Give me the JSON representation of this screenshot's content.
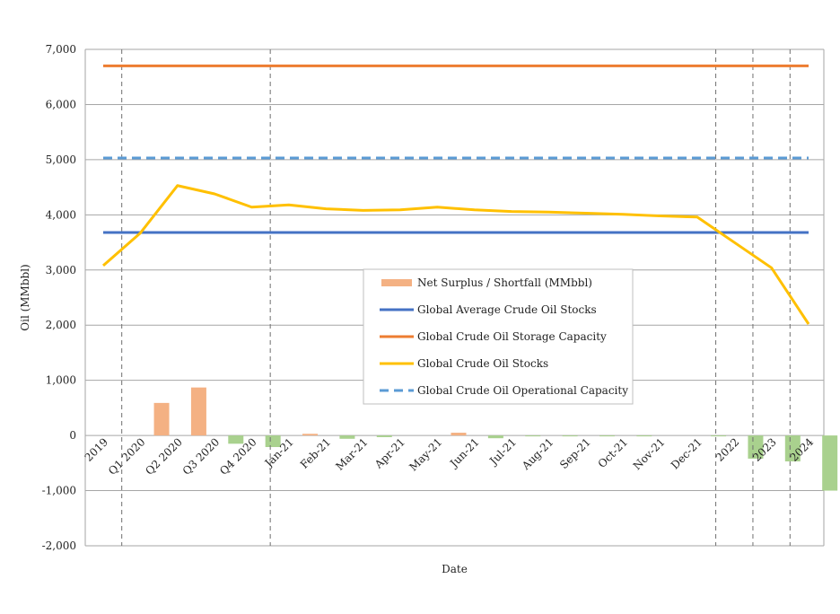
{
  "chart_data": {
    "type": "line",
    "title": "",
    "xlabel": "Date",
    "ylabel": "Oil (MMbbl)",
    "ylim": [
      -2000,
      7000
    ],
    "yticks": [
      -2000,
      -1000,
      0,
      1000,
      2000,
      3000,
      4000,
      5000,
      6000,
      7000
    ],
    "ytick_labels": [
      "-2,000",
      "-1,000",
      "0",
      "1,000",
      "2,000",
      "3,000",
      "4,000",
      "5,000",
      "6,000",
      "7,000"
    ],
    "categories": [
      "2019",
      "Q1 2020",
      "Q2 2020",
      "Q3 2020",
      "Q4 2020",
      "Jan-21",
      "Feb-21",
      "Mar-21",
      "Apr-21",
      "May-21",
      "Jun-21",
      "Jul-21",
      "Aug-21",
      "Sep-21",
      "Oct-21",
      "Nov-21",
      "Dec-21",
      "2022",
      "2023",
      "2024"
    ],
    "grid": true,
    "vertical_dashed_lines_between": [
      [
        0,
        1
      ],
      [
        4,
        5
      ],
      [
        16,
        17
      ],
      [
        17,
        18
      ],
      [
        18,
        19
      ]
    ],
    "legend_position": "center",
    "series": [
      {
        "name": "Net Surplus / Shortfall (MMbbl)",
        "kind": "bar",
        "color_positive": "#f4b183",
        "color_negative": "#a9d18e",
        "values": [
          0,
          590,
          870,
          -150,
          -210,
          30,
          -60,
          -30,
          0,
          50,
          -50,
          -15,
          -10,
          -10,
          -10,
          0,
          -10,
          -420,
          -470,
          -1000
        ]
      },
      {
        "name": "Global Average Crude Oil Stocks",
        "kind": "line",
        "color": "#4472c4",
        "dash": "solid",
        "values": [
          3680,
          3680,
          3680,
          3680,
          3680,
          3680,
          3680,
          3680,
          3680,
          3680,
          3680,
          3680,
          3680,
          3680,
          3680,
          3680,
          3680,
          3680,
          3680,
          3680
        ]
      },
      {
        "name": "Global Crude Oil Storage Capacity",
        "kind": "line",
        "color": "#ed7d31",
        "dash": "solid",
        "values": [
          6700,
          6700,
          6700,
          6700,
          6700,
          6700,
          6700,
          6700,
          6700,
          6700,
          6700,
          6700,
          6700,
          6700,
          6700,
          6700,
          6700,
          6700,
          6700,
          6700
        ]
      },
      {
        "name": "Global Crude Oil Stocks",
        "kind": "line",
        "color": "#ffc000",
        "dash": "solid",
        "values": [
          3080,
          3670,
          4530,
          4380,
          4140,
          4180,
          4110,
          4080,
          4090,
          4140,
          4090,
          4060,
          4050,
          4030,
          4010,
          3980,
          3960,
          3500,
          3040,
          2020
        ]
      },
      {
        "name": "Global Crude Oil Operational Capacity",
        "kind": "line",
        "color": "#5b9bd5",
        "dash": "dashed",
        "values": [
          5030,
          5030,
          5030,
          5030,
          5030,
          5030,
          5030,
          5030,
          5030,
          5030,
          5030,
          5030,
          5030,
          5030,
          5030,
          5030,
          5030,
          5030,
          5030,
          5030
        ]
      }
    ]
  }
}
